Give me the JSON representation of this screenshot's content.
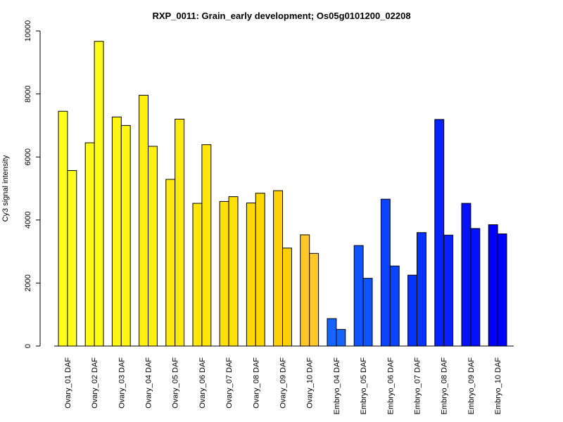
{
  "chart_data": {
    "type": "bar",
    "title": "RXP_0011: Grain_early development; Os05g0101200_02208",
    "xlabel": "",
    "ylabel": "Cy3 signal intensity",
    "ylim": [
      0,
      10000
    ],
    "yticks": [
      0,
      2000,
      4000,
      6000,
      8000,
      10000
    ],
    "grid": false,
    "legend": "none",
    "categories": [
      "Ovary_01 DAF",
      "Ovary_02 DAF",
      "Ovary_03 DAF",
      "Ovary_04 DAF",
      "Ovary_05 DAF",
      "Ovary_06 DAF",
      "Ovary_07 DAF",
      "Ovary_08 DAF",
      "Ovary_09 DAF",
      "Ovary_10 DAF",
      "Embryo_04 DAF",
      "Embryo_05 DAF",
      "Embryo_06 DAF",
      "Embryo_07 DAF",
      "Embryo_08 DAF",
      "Embryo_09 DAF",
      "Embryo_10 DAF"
    ],
    "series": [
      {
        "values": [
          7450,
          6450,
          7270,
          7960,
          5290,
          4530,
          4590,
          4540,
          4930,
          3530,
          870,
          3190,
          4660,
          2250,
          7190,
          4530,
          3850
        ]
      },
      {
        "values": [
          5570,
          9670,
          7000,
          6340,
          7200,
          6390,
          4740,
          4850,
          3110,
          2940,
          530,
          2150,
          2540,
          3600,
          3520,
          3730,
          3560
        ]
      }
    ],
    "colors": [
      "#FFFF1A",
      "#FFFA17",
      "#FFF514",
      "#FFF010",
      "#FFEA0D",
      "#FFE50A",
      "#FFDF08",
      "#FFD906",
      "#FFD004",
      "#FFC829",
      "#1466FF",
      "#0F55FF",
      "#0A44FF",
      "#0733FF",
      "#0522FF",
      "#0311FF",
      "#0000FF"
    ]
  }
}
